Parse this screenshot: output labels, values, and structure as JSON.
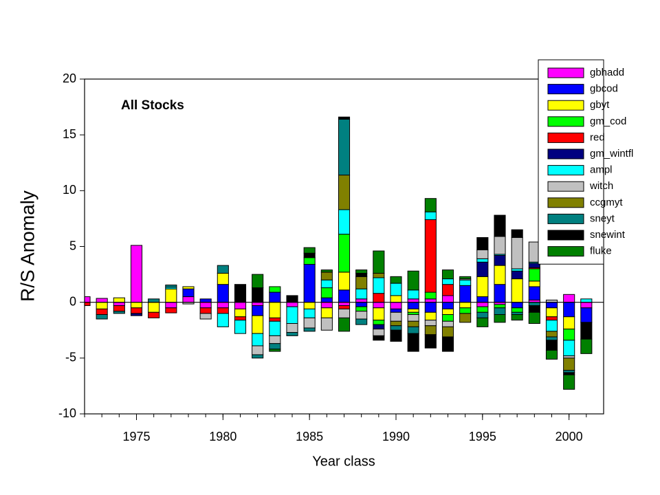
{
  "chart_data": {
    "type": "stacked_bar",
    "title": "All Stocks",
    "xlabel": "Year class",
    "ylabel": "R/S Anomaly",
    "x": [
      1972,
      1973,
      1974,
      1975,
      1976,
      1977,
      1978,
      1979,
      1980,
      1981,
      1982,
      1983,
      1984,
      1985,
      1986,
      1987,
      1988,
      1989,
      1990,
      1991,
      1992,
      1993,
      1994,
      1995,
      1996,
      1997,
      1998,
      1999,
      2000,
      2001
    ],
    "xlim": [
      1972,
      2002
    ],
    "xticks": [
      1975,
      1980,
      1985,
      1990,
      1995,
      2000
    ],
    "ylim": [
      -10,
      20
    ],
    "yticks": [
      -10,
      -5,
      0,
      5,
      10,
      15,
      20
    ],
    "legend": "upper right",
    "series": [
      {
        "name": "gbhadd",
        "color": "#ff00ff",
        "values": [
          0.5,
          0.35,
          -0.3,
          5.1,
          0,
          -0.5,
          0.5,
          -0.5,
          -0.5,
          -0.6,
          -0.3,
          0,
          -0.4,
          0,
          -0.5,
          -0.3,
          0.3,
          -0.5,
          -0.6,
          0.3,
          0.3,
          0.6,
          0,
          -0.4,
          -0.2,
          0,
          0.2,
          0,
          0.7,
          -0.5
        ]
      },
      {
        "name": "gbcod",
        "color": "#0000ff",
        "values": [
          0,
          0,
          0,
          0,
          0,
          0,
          0.7,
          0.3,
          1.6,
          0,
          -0.9,
          0.9,
          0,
          3.4,
          0.4,
          1.1,
          -0.4,
          0,
          -0.3,
          -0.6,
          -0.9,
          -0.6,
          1.5,
          0.5,
          1.6,
          -0.5,
          1.2,
          -0.5,
          -1.3,
          -1.3
        ]
      },
      {
        "name": "gbyt",
        "color": "#ffff00",
        "values": [
          0,
          -0.6,
          0.4,
          -0.5,
          -0.9,
          1.2,
          0.2,
          0,
          1.0,
          -0.7,
          -1.6,
          -1.4,
          0,
          -0.6,
          -0.9,
          1.6,
          0,
          -1.1,
          0.6,
          -0.3,
          -0.7,
          -0.5,
          -0.5,
          1.8,
          1.7,
          2.1,
          0.5,
          -0.8,
          -1.1,
          0
        ]
      },
      {
        "name": "gm_cod",
        "color": "#00ff00",
        "values": [
          0,
          0,
          0,
          0,
          0,
          0,
          0,
          0,
          0,
          0,
          0,
          0.5,
          0,
          0.6,
          0.9,
          3.4,
          -0.4,
          -0.4,
          0,
          -0.2,
          0.6,
          -0.6,
          -0.5,
          -0.5,
          -0.3,
          -0.4,
          1.1,
          0,
          -1.0,
          0
        ]
      },
      {
        "name": "red",
        "color": "#ff0000",
        "values": [
          -0.3,
          -0.5,
          -0.5,
          -0.5,
          -0.5,
          -0.45,
          0,
          -0.5,
          -0.5,
          -0.3,
          0,
          -0.3,
          0,
          0,
          0,
          -0.3,
          0,
          0.8,
          0,
          0,
          6.5,
          1.0,
          0,
          0,
          0,
          0,
          0.1,
          -0.3,
          0,
          0
        ]
      },
      {
        "name": "gm_wintfl",
        "color": "#000080",
        "values": [
          0,
          0,
          0,
          -0.2,
          0,
          0,
          0,
          0,
          0,
          0,
          0,
          0,
          0,
          0,
          0,
          0,
          0,
          -0.4,
          0,
          0,
          0,
          0,
          0,
          1.3,
          0.9,
          0.7,
          0.4,
          0,
          0,
          0
        ]
      },
      {
        "name": "ampl",
        "color": "#00ffff",
        "values": [
          0,
          0,
          0,
          0,
          0,
          0.15,
          0,
          0,
          -1.2,
          -1.2,
          -1.1,
          -1.3,
          -1.5,
          -0.8,
          0.7,
          2.2,
          0.9,
          1.4,
          1.1,
          0.8,
          0.7,
          0.5,
          0.5,
          0.3,
          0.1,
          0.2,
          0.1,
          -1.0,
          -1.4,
          0.3
        ]
      },
      {
        "name": "witch",
        "color": "#c0c0c0",
        "values": [
          0,
          0,
          0,
          0,
          0,
          0,
          -0.15,
          -0.5,
          0,
          0,
          -0.8,
          -0.7,
          -0.8,
          -0.9,
          -1.1,
          -0.8,
          -0.7,
          -0.6,
          -0.8,
          -0.6,
          -0.5,
          -0.5,
          0.1,
          0.8,
          1.6,
          2.8,
          1.8,
          0.2,
          -0.2,
          0
        ]
      },
      {
        "name": "ccgmyt",
        "color": "#808000",
        "values": [
          0,
          0,
          0,
          0,
          0,
          0,
          0,
          0,
          0,
          0,
          0,
          0,
          0,
          0,
          0.7,
          3.1,
          1.1,
          0.4,
          -0.4,
          -0.5,
          -0.8,
          -0.9,
          -0.8,
          0,
          0,
          0,
          0,
          -0.5,
          -1.1,
          0
        ]
      },
      {
        "name": "sneyt",
        "color": "#008080",
        "values": [
          0,
          -0.4,
          -0.2,
          0,
          0.3,
          0.2,
          0,
          0,
          0.7,
          0,
          -0.3,
          -0.5,
          -0.3,
          -0.3,
          0,
          5.0,
          -0.5,
          0,
          -0.4,
          -0.6,
          0,
          0,
          0,
          -0.5,
          -0.6,
          -0.2,
          -0.3,
          -0.3,
          -0.2,
          0
        ]
      },
      {
        "name": "snewint",
        "color": "#000000",
        "values": [
          0,
          0,
          0,
          0,
          0,
          0,
          0,
          0,
          0,
          1.6,
          1.3,
          0,
          0.6,
          0.4,
          0,
          0.2,
          0.3,
          -0.4,
          -1.0,
          -1.6,
          -1.2,
          -1.3,
          0,
          1.1,
          1.9,
          0.7,
          -0.6,
          -0.9,
          -0.2,
          -1.5
        ]
      },
      {
        "name": "fluke",
        "color": "#008000",
        "values": [
          0,
          0,
          0,
          0,
          0,
          0,
          0,
          0,
          0,
          0,
          1.2,
          -0.2,
          0,
          0.5,
          0.2,
          -1.2,
          0.3,
          2.0,
          0.6,
          1.7,
          1.2,
          0.8,
          0.2,
          -0.8,
          -0.7,
          -0.5,
          -1.0,
          -0.8,
          -1.3,
          -1.3
        ]
      }
    ]
  }
}
